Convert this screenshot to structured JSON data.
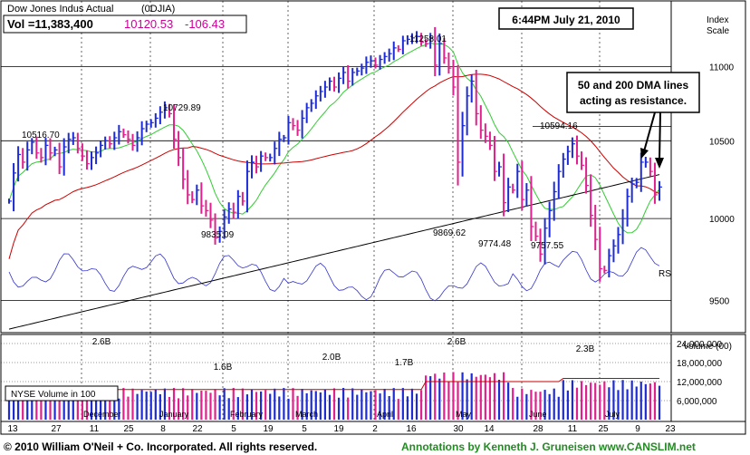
{
  "chart_data": [
    {
      "type": "candlestick",
      "header": {
        "name": "Dow Jones Indus Actual",
        "symbol": "(0DJIA)",
        "vol_label": "Vol =11,383,400",
        "price": "10120.53",
        "change": "-106.43"
      },
      "timestamp": "6:44PM July 21, 2010",
      "index_scale_label": [
        "Index",
        "Scale"
      ],
      "y_ticks": [
        9500,
        10000,
        10500,
        11000
      ],
      "ylim": [
        9320,
        11450
      ],
      "x_ticks": [
        "13",
        "27",
        "11",
        "25",
        "8",
        "22",
        "5",
        "19",
        "5",
        "19",
        "2",
        "16",
        "30",
        "14",
        "28",
        "11",
        "25",
        "9",
        "23"
      ],
      "month_labels": [
        "December",
        "January",
        "February",
        "March",
        "April",
        "May",
        "June",
        "July"
      ],
      "price_labels": [
        "10516.70",
        "10729.89",
        "9835.09",
        "11258.01",
        "9869.62",
        "9774.48",
        "9757.55",
        "10594.16"
      ],
      "annotation": [
        "50 and 200 DMA lines",
        "acting as resistance."
      ],
      "rs_label": "RS",
      "closes": [
        10110,
        10290,
        10410,
        10360,
        10440,
        10490,
        10420,
        10390,
        10470,
        10420,
        10440,
        10330,
        10460,
        10510,
        10520,
        10450,
        10400,
        10350,
        10390,
        10420,
        10470,
        10500,
        10480,
        10520,
        10560,
        10540,
        10510,
        10470,
        10520,
        10580,
        10610,
        10620,
        10650,
        10690,
        10720,
        10680,
        10510,
        10390,
        10250,
        10150,
        10120,
        10180,
        10080,
        10050,
        9990,
        9880,
        9920,
        10010,
        10060,
        10040,
        10140,
        10110,
        10300,
        10360,
        10330,
        10400,
        10390,
        10390,
        10450,
        10510,
        10520,
        10620,
        10600,
        10570,
        10650,
        10720,
        10750,
        10800,
        10830,
        10860,
        10900,
        10860,
        10920,
        10960,
        10900,
        10960,
        10970,
        10990,
        11030,
        11040,
        11010,
        11050,
        11070,
        11090,
        11130,
        11120,
        11180,
        11190,
        11200,
        11210,
        11170,
        11160,
        11200,
        11010,
        11160,
        11060,
        10990,
        10860,
        10360,
        10600,
        10800,
        10900,
        10680,
        10570,
        10530,
        10470,
        10300,
        10330,
        10100,
        10200,
        10180,
        10300,
        10120,
        10180,
        9950,
        9890,
        9780,
        9940,
        10050,
        10170,
        10300,
        10380,
        10430,
        10480,
        10400,
        10340,
        10210,
        10020,
        9870,
        9690,
        9680,
        9770,
        9830,
        9900,
        10000,
        10140,
        10220,
        10230,
        10360,
        10360,
        10300,
        10150,
        10200
      ],
      "series": [
        {
          "name": "50 DMA"
        },
        {
          "name": "200 DMA"
        },
        {
          "name": "RS"
        }
      ]
    },
    {
      "type": "bar",
      "label": "NYSE Volume in 100",
      "axis_title": "Volume (00)",
      "y_ticks": [
        "6,000,000",
        "12,000,000",
        "18,000,000",
        "24,000,000"
      ],
      "ylim": [
        0,
        26000000
      ],
      "peak_labels": [
        "2.6B",
        "1.6B",
        "2.0B",
        "1.7B",
        "2.6B",
        "2.3B"
      ]
    }
  ],
  "footer": {
    "copyright": "© 2010 William O'Neil + Co. Incorporated. All rights reserved.",
    "annotations_credit": "Annotations by Kenneth J. Gruneisen www.CANSLIM.net"
  }
}
